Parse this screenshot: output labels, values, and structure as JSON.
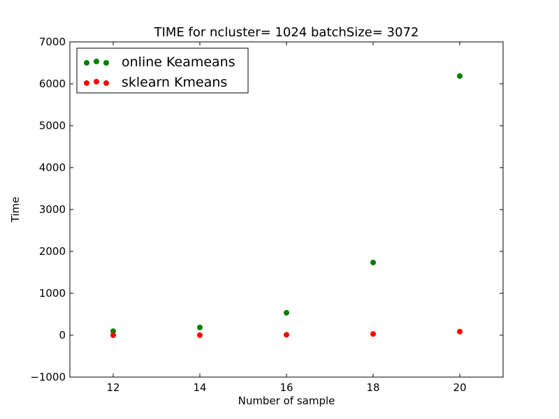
{
  "chart_data": {
    "type": "scatter",
    "title": "TIME for ncluster= 1024 batchSize= 3072",
    "xlabel": "Number of sample",
    "ylabel": "Time",
    "xlim": [
      11,
      21
    ],
    "ylim": [
      -1000,
      7000
    ],
    "xticks": [
      12,
      14,
      16,
      18,
      20
    ],
    "yticks": [
      -1000,
      0,
      1000,
      2000,
      3000,
      4000,
      5000,
      6000,
      7000
    ],
    "xtick_labels": [
      "12",
      "14",
      "16",
      "18",
      "20"
    ],
    "ytick_labels": [
      "−1000",
      "0",
      "1000",
      "2000",
      "3000",
      "4000",
      "5000",
      "6000",
      "7000"
    ],
    "grid": false,
    "legend_position": "top-left",
    "series": [
      {
        "name": "online Keameans",
        "color": "#008000",
        "x": [
          12,
          14,
          16,
          18,
          20
        ],
        "y": [
          95,
          185,
          535,
          1735,
          6185
        ]
      },
      {
        "name": "sklearn Kmeans",
        "color": "#ff0000",
        "x": [
          12,
          14,
          16,
          18,
          20
        ],
        "y": [
          0,
          0,
          10,
          30,
          85
        ]
      }
    ]
  }
}
